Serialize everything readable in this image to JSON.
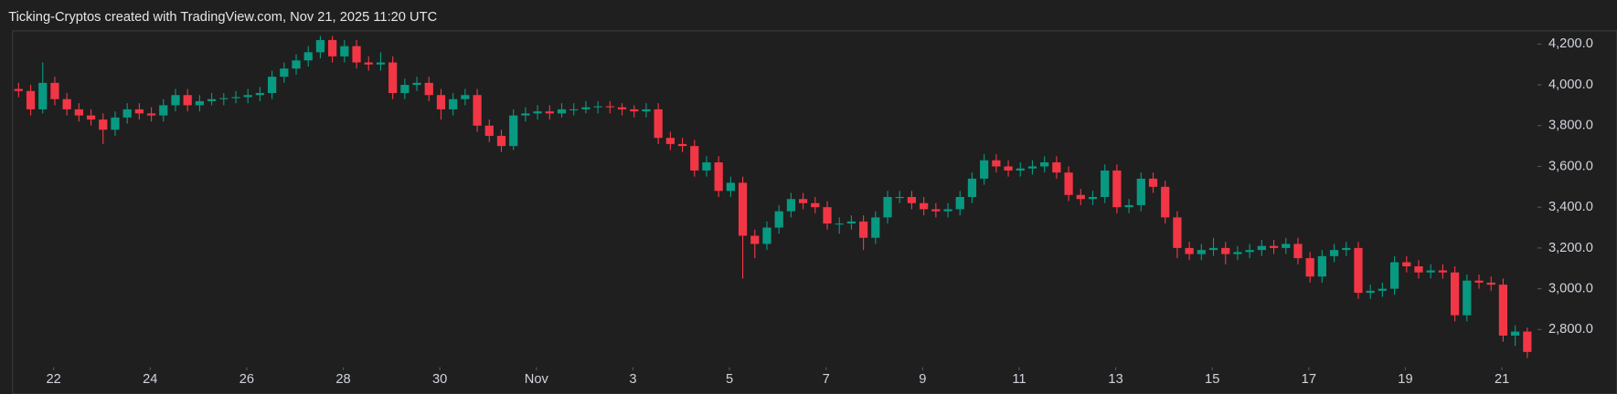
{
  "chart_data": {
    "type": "candlestick",
    "title": "Ticking-Cryptos created with TradingView.com, Nov 21, 2025 11:20 UTC",
    "up_color": "#089981",
    "down_color": "#f23645",
    "xlim": [
      -0.5,
      125.5
    ],
    "xticks": [
      {
        "value": 2.9,
        "label": "22"
      },
      {
        "value": 10.9,
        "label": "24"
      },
      {
        "value": 18.9,
        "label": "26"
      },
      {
        "value": 26.9,
        "label": "28"
      },
      {
        "value": 34.9,
        "label": "30"
      },
      {
        "value": 42.9,
        "label": "Nov"
      },
      {
        "value": 50.9,
        "label": "3"
      },
      {
        "value": 58.9,
        "label": "5"
      },
      {
        "value": 66.9,
        "label": "7"
      },
      {
        "value": 74.9,
        "label": "9"
      },
      {
        "value": 82.9,
        "label": "11"
      },
      {
        "value": 90.9,
        "label": "13"
      },
      {
        "value": 98.9,
        "label": "15"
      },
      {
        "value": 106.9,
        "label": "17"
      },
      {
        "value": 114.9,
        "label": "19"
      },
      {
        "value": 122.9,
        "label": "21"
      }
    ],
    "ylim": [
      2625,
      4265
    ],
    "yticks": [
      {
        "value": 2800,
        "label": "2,800.0"
      },
      {
        "value": 3000,
        "label": "3,000.0"
      },
      {
        "value": 3200,
        "label": "3,200.0"
      },
      {
        "value": 3400,
        "label": "3,400.0"
      },
      {
        "value": 3600,
        "label": "3,600.0"
      },
      {
        "value": 3800,
        "label": "3,800.0"
      },
      {
        "value": 4000,
        "label": "4,000.0"
      },
      {
        "value": 4200,
        "label": "4,200.0"
      }
    ],
    "open": [
      3980,
      3970,
      3880,
      4010,
      3930,
      3880,
      3850,
      3830,
      3780,
      3840,
      3880,
      3860,
      3850,
      3900,
      3950,
      3900,
      3920,
      3930,
      3935,
      3940,
      3950,
      3960,
      4040,
      4080,
      4120,
      4160,
      4220,
      4140,
      4190,
      4110,
      4100,
      4110,
      3960,
      4000,
      4010,
      3950,
      3880,
      3930,
      3950,
      3800,
      3750,
      3700,
      3850,
      3860,
      3870,
      3860,
      3880,
      3880,
      3890,
      3895,
      3890,
      3880,
      3870,
      3880,
      3740,
      3710,
      3700,
      3580,
      3620,
      3480,
      3520,
      3260,
      3220,
      3300,
      3380,
      3440,
      3420,
      3400,
      3320,
      3320,
      3330,
      3250,
      3350,
      3450,
      3450,
      3420,
      3390,
      3380,
      3390,
      3450,
      3540,
      3630,
      3600,
      3580,
      3590,
      3600,
      3620,
      3570,
      3460,
      3440,
      3450,
      3580,
      3400,
      3410,
      3540,
      3500,
      3350,
      3200,
      3170,
      3190,
      3200,
      3170,
      3180,
      3190,
      3210,
      3200,
      3220,
      3150,
      3060,
      3160,
      3190,
      3200,
      2980,
      2990,
      3000,
      3130,
      3110,
      3080,
      3090,
      3080,
      2870,
      3040,
      3030,
      3020,
      2770,
      2790
    ],
    "high": [
      4010,
      4000,
      4110,
      4040,
      3960,
      3910,
      3880,
      3860,
      3870,
      3910,
      3910,
      3890,
      3930,
      3980,
      3980,
      3950,
      3960,
      3960,
      3970,
      3980,
      3990,
      4070,
      4110,
      4150,
      4190,
      4240,
      4240,
      4220,
      4220,
      4140,
      4160,
      4140,
      4030,
      4040,
      4040,
      3980,
      3960,
      3980,
      3980,
      3830,
      3780,
      3880,
      3890,
      3900,
      3900,
      3910,
      3910,
      3920,
      3920,
      3920,
      3910,
      3900,
      3910,
      3910,
      3770,
      3740,
      3730,
      3650,
      3650,
      3550,
      3550,
      3290,
      3330,
      3410,
      3470,
      3470,
      3450,
      3430,
      3350,
      3360,
      3360,
      3380,
      3480,
      3480,
      3480,
      3450,
      3420,
      3420,
      3480,
      3570,
      3660,
      3660,
      3630,
      3620,
      3630,
      3650,
      3650,
      3600,
      3490,
      3480,
      3610,
      3610,
      3440,
      3570,
      3570,
      3530,
      3380,
      3230,
      3220,
      3250,
      3230,
      3210,
      3220,
      3240,
      3240,
      3250,
      3250,
      3180,
      3190,
      3220,
      3230,
      3230,
      3020,
      3030,
      3160,
      3160,
      3140,
      3120,
      3120,
      3110,
      3070,
      3070,
      3060,
      3050,
      2820,
      2810
    ],
    "low": [
      3940,
      3850,
      3860,
      3900,
      3850,
      3820,
      3800,
      3710,
      3750,
      3810,
      3830,
      3820,
      3820,
      3870,
      3870,
      3870,
      3900,
      3900,
      3910,
      3910,
      3920,
      3930,
      4010,
      4050,
      4090,
      4130,
      4110,
      4110,
      4080,
      4070,
      4070,
      3930,
      3930,
      3970,
      3920,
      3830,
      3850,
      3900,
      3770,
      3720,
      3670,
      3680,
      3820,
      3830,
      3830,
      3840,
      3850,
      3860,
      3860,
      3860,
      3850,
      3840,
      3840,
      3710,
      3680,
      3670,
      3550,
      3550,
      3450,
      3450,
      3050,
      3150,
      3190,
      3270,
      3350,
      3390,
      3370,
      3290,
      3270,
      3290,
      3190,
      3220,
      3320,
      3420,
      3390,
      3360,
      3350,
      3350,
      3360,
      3420,
      3510,
      3570,
      3550,
      3550,
      3560,
      3570,
      3540,
      3430,
      3410,
      3410,
      3420,
      3370,
      3370,
      3380,
      3470,
      3320,
      3150,
      3140,
      3140,
      3160,
      3120,
      3140,
      3150,
      3160,
      3170,
      3170,
      3120,
      3030,
      3030,
      3130,
      3160,
      2950,
      2950,
      2960,
      2970,
      3080,
      3050,
      3050,
      3050,
      2840,
      2840,
      3000,
      2990,
      2740,
      2720,
      2660
    ],
    "close": [
      3970,
      3880,
      4010,
      3930,
      3880,
      3850,
      3830,
      3780,
      3840,
      3880,
      3860,
      3850,
      3900,
      3950,
      3900,
      3920,
      3930,
      3935,
      3940,
      3950,
      3960,
      4040,
      4080,
      4120,
      4160,
      4220,
      4140,
      4190,
      4110,
      4100,
      4110,
      3960,
      4000,
      4010,
      3950,
      3880,
      3930,
      3950,
      3800,
      3750,
      3700,
      3850,
      3860,
      3870,
      3860,
      3880,
      3880,
      3890,
      3895,
      3890,
      3880,
      3870,
      3880,
      3740,
      3710,
      3700,
      3580,
      3620,
      3480,
      3520,
      3260,
      3220,
      3300,
      3380,
      3440,
      3420,
      3400,
      3320,
      3320,
      3330,
      3250,
      3350,
      3450,
      3450,
      3420,
      3390,
      3380,
      3390,
      3450,
      3540,
      3630,
      3600,
      3580,
      3590,
      3600,
      3620,
      3570,
      3460,
      3440,
      3450,
      3580,
      3400,
      3410,
      3540,
      3500,
      3350,
      3200,
      3170,
      3190,
      3200,
      3170,
      3180,
      3190,
      3210,
      3200,
      3220,
      3150,
      3060,
      3160,
      3190,
      3200,
      2980,
      2990,
      3000,
      3130,
      3110,
      3080,
      3090,
      3080,
      2870,
      3040,
      3030,
      3020,
      2770,
      2790,
      2690
    ]
  }
}
